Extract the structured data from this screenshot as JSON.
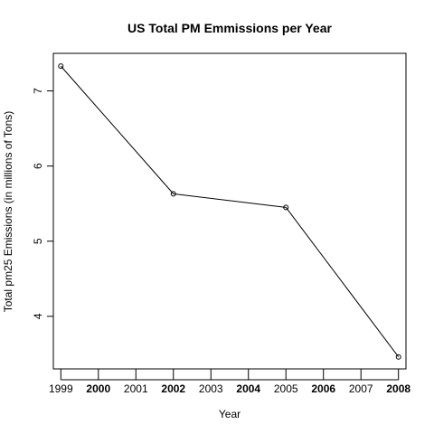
{
  "chart_data": {
    "type": "line",
    "title": "US Total PM Emmissions per Year",
    "xlabel": "Year",
    "ylabel": "Total pm25 Emissions (in millions of Tons)",
    "x": [
      1999,
      2002,
      2005,
      2008
    ],
    "series": [
      {
        "values": [
          7.33,
          5.63,
          5.45,
          3.46
        ]
      }
    ],
    "xlim": [
      1998.8,
      2008.2
    ],
    "ylim": [
      3.3,
      7.5
    ],
    "xticks": [
      "1999",
      "2000",
      "2001",
      "2002",
      "2003",
      "2004",
      "2005",
      "2006",
      "2007",
      "2008"
    ],
    "xticks_bold": [
      "2000",
      "2002",
      "2004",
      "2006",
      "2008"
    ],
    "yticks": [
      "4",
      "5",
      "6",
      "7"
    ],
    "marker": "open-circle",
    "grid": false,
    "legend": "none",
    "colors": {
      "line": "#000000",
      "axis": "#000000"
    }
  }
}
